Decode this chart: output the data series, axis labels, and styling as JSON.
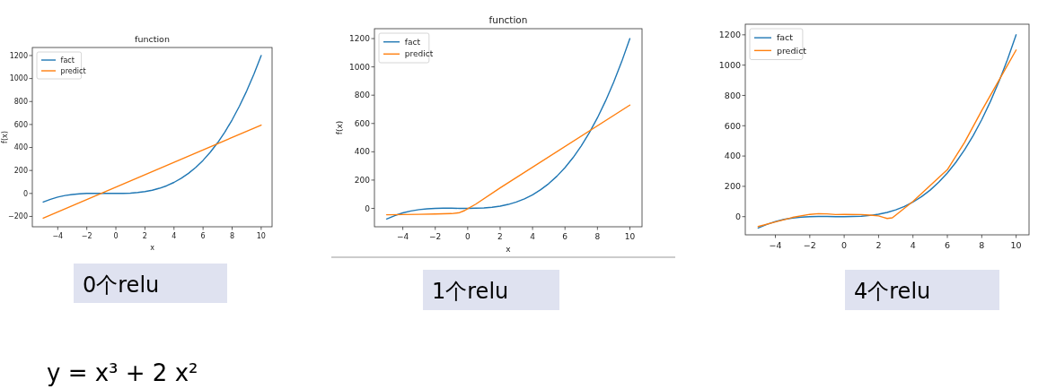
{
  "chart_data": [
    {
      "type": "line",
      "title": "function",
      "xlabel": "x",
      "ylabel": "f(x)",
      "xlim": [
        -5.75,
        10.75
      ],
      "ylim": [
        -290,
        1270
      ],
      "xticks": [
        -4,
        -2,
        0,
        2,
        4,
        6,
        8,
        10
      ],
      "yticks": [
        -200,
        0,
        200,
        400,
        600,
        800,
        1000,
        1200
      ],
      "legend": "top left",
      "grid": false,
      "annotations": [
        "0个relu",
        "y = x³ + 2 x²"
      ],
      "series": [
        {
          "name": "fact",
          "color": "#1f77b4",
          "x": [
            -5,
            -4.5,
            -4,
            -3.5,
            -3,
            -2.5,
            -2,
            -1.5,
            -1,
            -0.5,
            0,
            0.5,
            1,
            1.5,
            2,
            2.5,
            3,
            3.5,
            4,
            4.5,
            5,
            5.5,
            6,
            6.5,
            7,
            7.5,
            8,
            8.5,
            9,
            9.5,
            10
          ],
          "values": [
            -75,
            -51,
            -32,
            -18,
            -9,
            -3,
            0,
            1,
            1,
            0,
            0,
            1,
            3,
            8,
            16,
            28,
            45,
            67,
            96,
            132,
            175,
            227,
            288,
            359,
            441,
            534,
            640,
            759,
            891,
            1038,
            1200
          ]
        },
        {
          "name": "predict",
          "color": "#ff7f0e",
          "x": [
            -5,
            10
          ],
          "values": [
            -215,
            595
          ]
        }
      ]
    },
    {
      "type": "line",
      "title": "function",
      "xlabel": "x",
      "ylabel": "f(x)",
      "xlim": [
        -5.75,
        10.75
      ],
      "ylim": [
        -130,
        1270
      ],
      "xticks": [
        -4,
        -2,
        0,
        2,
        4,
        6,
        8,
        10
      ],
      "yticks": [
        0,
        200,
        400,
        600,
        800,
        1000,
        1200
      ],
      "legend": "top left",
      "grid": false,
      "annotations": [
        "1个relu"
      ],
      "series": [
        {
          "name": "fact",
          "color": "#1f77b4",
          "x": [
            -5,
            -4.5,
            -4,
            -3.5,
            -3,
            -2.5,
            -2,
            -1.5,
            -1,
            -0.5,
            0,
            0.5,
            1,
            1.5,
            2,
            2.5,
            3,
            3.5,
            4,
            4.5,
            5,
            5.5,
            6,
            6.5,
            7,
            7.5,
            8,
            8.5,
            9,
            9.5,
            10
          ],
          "values": [
            -75,
            -51,
            -32,
            -18,
            -9,
            -3,
            0,
            1,
            1,
            0,
            0,
            1,
            3,
            8,
            16,
            28,
            45,
            67,
            96,
            132,
            175,
            227,
            288,
            359,
            441,
            534,
            640,
            759,
            891,
            1038,
            1200
          ]
        },
        {
          "name": "predict",
          "color": "#ff7f0e",
          "x": [
            -5,
            -3,
            -2,
            -1,
            -0.5,
            -0.2,
            0,
            0.5,
            2,
            10
          ],
          "values": [
            -45,
            -42,
            -40,
            -37,
            -30,
            -16,
            -2,
            30,
            145,
            730
          ]
        }
      ]
    },
    {
      "type": "line",
      "xlim": [
        -5.75,
        10.75
      ],
      "ylim": [
        -120,
        1270
      ],
      "xticks": [
        -4,
        -2,
        0,
        2,
        4,
        6,
        8,
        10
      ],
      "yticks": [
        0,
        200,
        400,
        600,
        800,
        1000,
        1200
      ],
      "legend": "top left",
      "grid": false,
      "annotations": [
        "4个relu"
      ],
      "series": [
        {
          "name": "fact",
          "color": "#1f77b4",
          "x": [
            -5,
            -4.5,
            -4,
            -3.5,
            -3,
            -2.5,
            -2,
            -1.5,
            -1,
            -0.5,
            0,
            0.5,
            1,
            1.5,
            2,
            2.5,
            3,
            3.5,
            4,
            4.5,
            5,
            5.5,
            6,
            6.5,
            7,
            7.5,
            8,
            8.5,
            9,
            9.5,
            10
          ],
          "values": [
            -75,
            -51,
            -32,
            -18,
            -9,
            -3,
            0,
            1,
            1,
            0,
            0,
            1,
            3,
            8,
            16,
            28,
            45,
            67,
            96,
            132,
            175,
            227,
            288,
            359,
            441,
            534,
            640,
            759,
            891,
            1038,
            1200
          ]
        },
        {
          "name": "predict",
          "color": "#ff7f0e",
          "x": [
            -5,
            -4,
            -3,
            -2,
            -1.5,
            -1,
            -0.5,
            0,
            1,
            1.5,
            2,
            2.3,
            2.5,
            2.8,
            3,
            4,
            5,
            6,
            7,
            8,
            9,
            10
          ],
          "values": [
            -65,
            -35,
            -5,
            15,
            20,
            18,
            14,
            15,
            14,
            10,
            5,
            -5,
            -12,
            -8,
            10,
            100,
            205,
            310,
            490,
            700,
            900,
            1100
          ]
        }
      ]
    }
  ]
}
